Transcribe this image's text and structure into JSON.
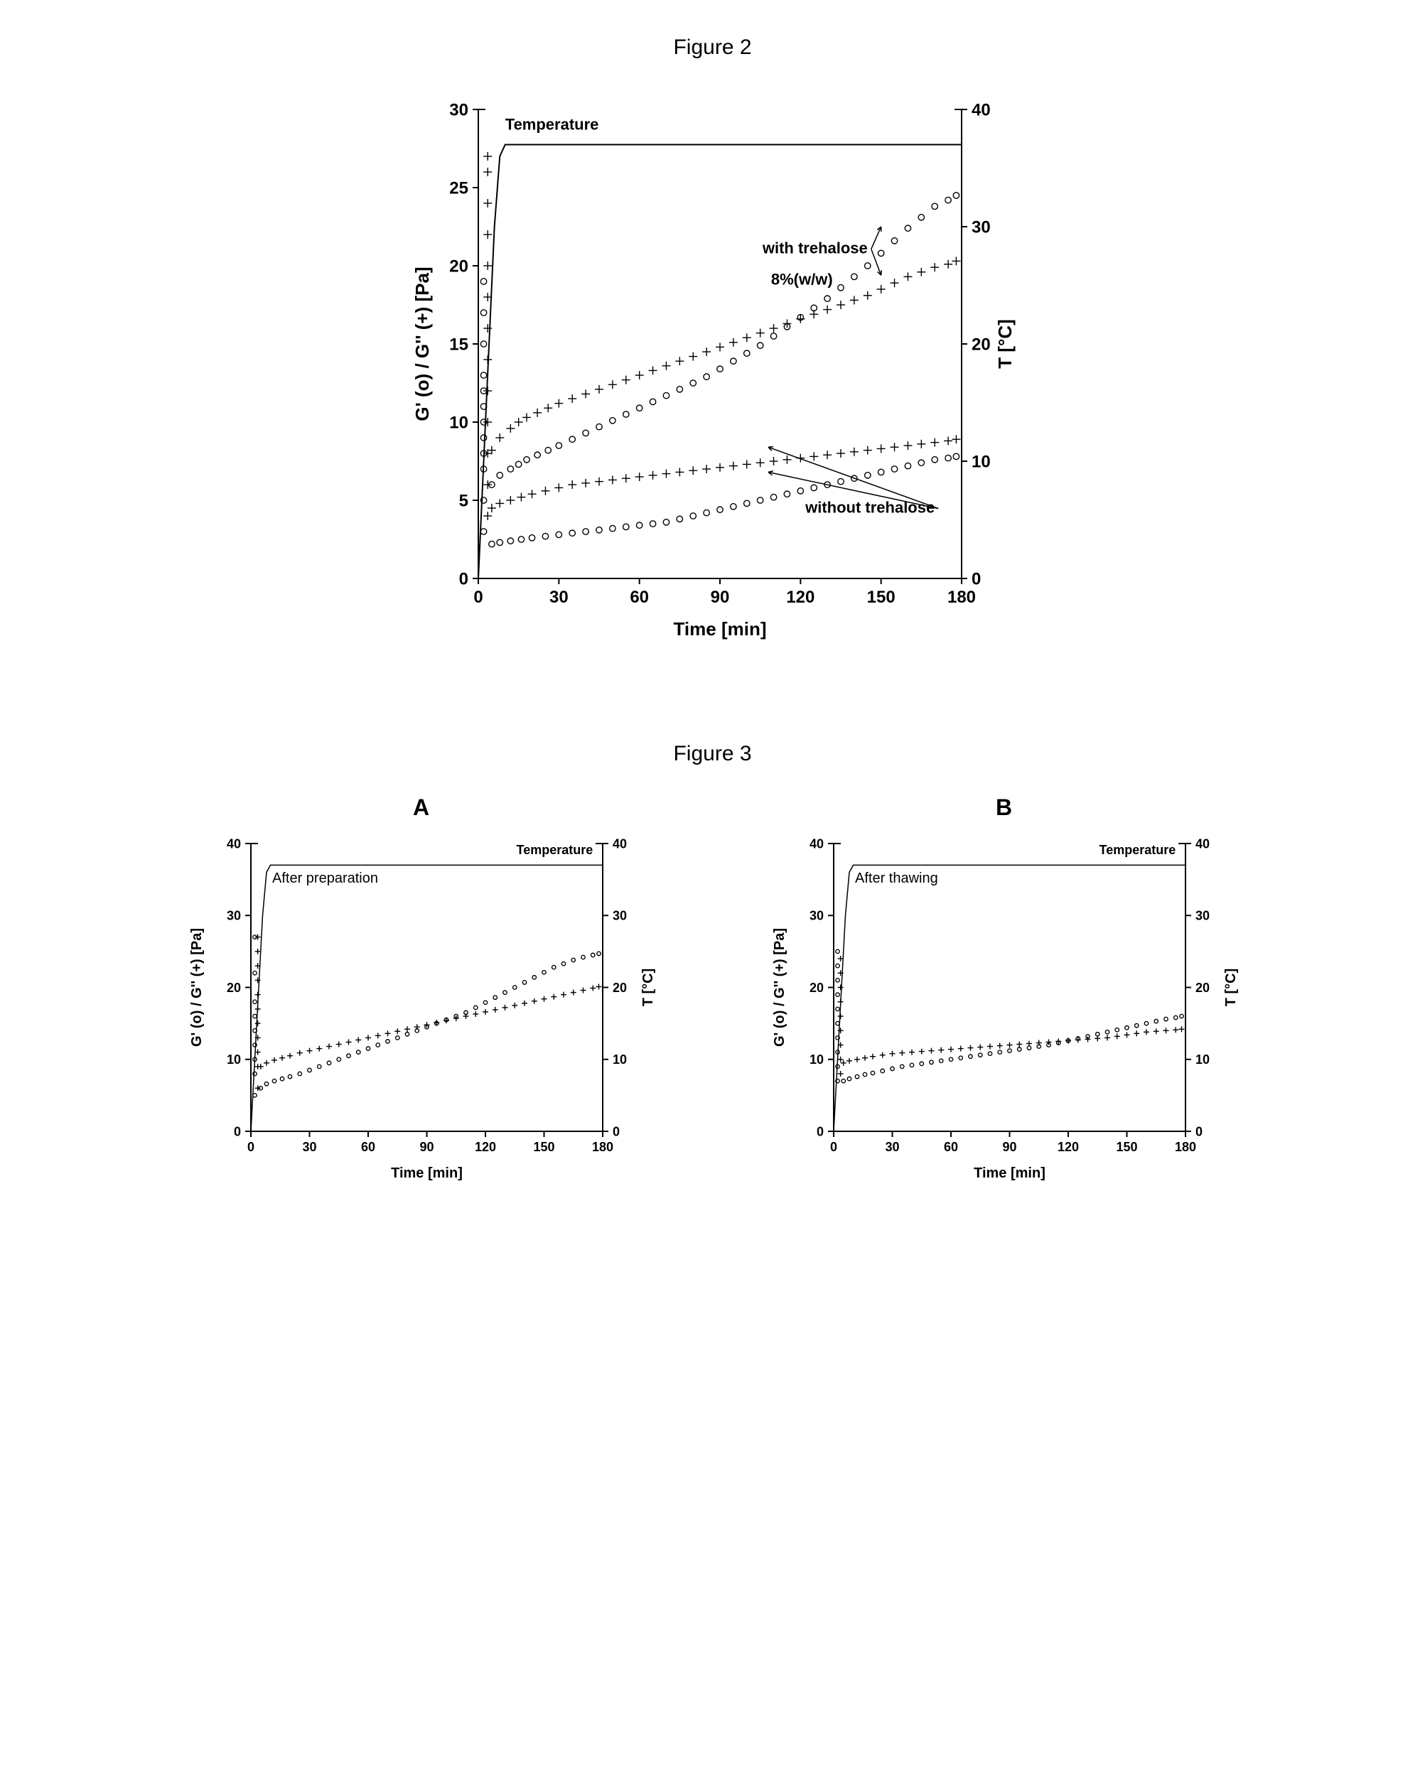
{
  "fig2": {
    "title": "Figure 2",
    "type": "scatter-dual-axis",
    "xlabel": "Time [min]",
    "ylabel_left": "G' (o) / G'' (+)  [Pa]",
    "ylabel_right": "T [°C]",
    "xlim": [
      0,
      180
    ],
    "xtick_step": 30,
    "ylim_left": [
      0,
      30
    ],
    "ytick_left_step": 5,
    "ylim_right": [
      0,
      40
    ],
    "ytick_right_step": 10,
    "label_fontsize": 26,
    "tick_fontsize": 24,
    "annotation_fontsize": 22,
    "background_color": "#ffffff",
    "axis_color": "#000000",
    "marker_stroke": "#000000",
    "marker_size_circle": 4.2,
    "marker_size_plus": 6,
    "line_width_temp": 2,
    "annotations": [
      {
        "text": "Temperature",
        "x": 10,
        "y_left": 28.7,
        "anchor": "start"
      },
      {
        "text": "with trehalose",
        "x": 145,
        "y_left": 20.8,
        "anchor": "end",
        "arrows_to": [
          [
            150,
            19.4
          ],
          [
            150,
            22.5
          ]
        ]
      },
      {
        "text": "8%(w/w)",
        "x": 132,
        "y_left": 18.8,
        "anchor": "end"
      },
      {
        "text": "without trehalose",
        "x": 170,
        "y_left": 4.2,
        "anchor": "end",
        "arrows_to": [
          [
            108,
            6.8
          ],
          [
            108,
            8.4
          ]
        ]
      }
    ],
    "temp_line": {
      "x": [
        0,
        2,
        4,
        6,
        8,
        10,
        180
      ],
      "y_right": [
        0,
        10,
        20,
        30,
        36,
        37,
        37
      ]
    },
    "series": {
      "with_o": {
        "marker": "circle",
        "x": [
          5,
          8,
          12,
          15,
          18,
          22,
          26,
          30,
          35,
          40,
          45,
          50,
          55,
          60,
          65,
          70,
          75,
          80,
          85,
          90,
          95,
          100,
          105,
          110,
          115,
          120,
          125,
          130,
          135,
          140,
          145,
          150,
          155,
          160,
          165,
          170,
          175,
          178
        ],
        "y": [
          6.0,
          6.6,
          7.0,
          7.3,
          7.6,
          7.9,
          8.2,
          8.5,
          8.9,
          9.3,
          9.7,
          10.1,
          10.5,
          10.9,
          11.3,
          11.7,
          12.1,
          12.5,
          12.9,
          13.4,
          13.9,
          14.4,
          14.9,
          15.5,
          16.1,
          16.7,
          17.3,
          17.9,
          18.6,
          19.3,
          20.0,
          20.8,
          21.6,
          22.4,
          23.1,
          23.8,
          24.2,
          24.5
        ]
      },
      "with_p": {
        "marker": "plus",
        "x": [
          5,
          8,
          12,
          15,
          18,
          22,
          26,
          30,
          35,
          40,
          45,
          50,
          55,
          60,
          65,
          70,
          75,
          80,
          85,
          90,
          95,
          100,
          105,
          110,
          115,
          120,
          125,
          130,
          135,
          140,
          145,
          150,
          155,
          160,
          165,
          170,
          175,
          178
        ],
        "y": [
          8.2,
          9.0,
          9.6,
          10.0,
          10.3,
          10.6,
          10.9,
          11.2,
          11.5,
          11.8,
          12.1,
          12.4,
          12.7,
          13.0,
          13.3,
          13.6,
          13.9,
          14.2,
          14.5,
          14.8,
          15.1,
          15.4,
          15.7,
          16.0,
          16.3,
          16.6,
          16.9,
          17.2,
          17.5,
          17.8,
          18.1,
          18.5,
          18.9,
          19.3,
          19.6,
          19.9,
          20.1,
          20.3
        ]
      },
      "wo_o": {
        "marker": "circle",
        "x": [
          5,
          8,
          12,
          16,
          20,
          25,
          30,
          35,
          40,
          45,
          50,
          55,
          60,
          65,
          70,
          75,
          80,
          85,
          90,
          95,
          100,
          105,
          110,
          115,
          120,
          125,
          130,
          135,
          140,
          145,
          150,
          155,
          160,
          165,
          170,
          175,
          178
        ],
        "y": [
          2.2,
          2.3,
          2.4,
          2.5,
          2.6,
          2.7,
          2.8,
          2.9,
          3.0,
          3.1,
          3.2,
          3.3,
          3.4,
          3.5,
          3.6,
          3.8,
          4.0,
          4.2,
          4.4,
          4.6,
          4.8,
          5.0,
          5.2,
          5.4,
          5.6,
          5.8,
          6.0,
          6.2,
          6.4,
          6.6,
          6.8,
          7.0,
          7.2,
          7.4,
          7.6,
          7.7,
          7.8
        ]
      },
      "wo_p": {
        "marker": "plus",
        "x": [
          5,
          8,
          12,
          16,
          20,
          25,
          30,
          35,
          40,
          45,
          50,
          55,
          60,
          65,
          70,
          75,
          80,
          85,
          90,
          95,
          100,
          105,
          110,
          115,
          120,
          125,
          130,
          135,
          140,
          145,
          150,
          155,
          160,
          165,
          170,
          175,
          178
        ],
        "y": [
          4.5,
          4.8,
          5.0,
          5.2,
          5.4,
          5.6,
          5.8,
          6.0,
          6.1,
          6.2,
          6.3,
          6.4,
          6.5,
          6.6,
          6.7,
          6.8,
          6.9,
          7.0,
          7.1,
          7.2,
          7.3,
          7.4,
          7.5,
          7.6,
          7.7,
          7.8,
          7.9,
          8.0,
          8.1,
          8.2,
          8.3,
          8.4,
          8.5,
          8.6,
          8.7,
          8.8,
          8.9
        ]
      }
    },
    "scatter_vertical": {
      "circle": [
        3,
        5,
        7,
        8,
        9,
        10,
        11,
        12,
        13,
        15,
        17,
        19
      ],
      "plus": [
        4,
        6,
        8,
        10,
        12,
        14,
        16,
        18,
        20,
        22,
        24,
        26,
        27
      ]
    }
  },
  "fig3": {
    "title": "Figure 3",
    "type": "scatter-dual-axis-pair",
    "xlabel": "Time  [min]",
    "ylabel_left": "G' (o)  /  G'' (+)  [Pa]",
    "ylabel_right": "T [°C]",
    "xlim": [
      0,
      180
    ],
    "xtick_step": 30,
    "ylim_left": [
      0,
      40
    ],
    "ytick_left_step": 10,
    "ylim_right": [
      0,
      40
    ],
    "ytick_right_step": 10,
    "label_fontsize": 20,
    "tick_fontsize": 18,
    "annotation_fontsize": 18,
    "background_color": "#ffffff",
    "axis_color": "#000000",
    "marker_stroke": "#000000",
    "marker_size_circle": 2.7,
    "marker_size_plus": 4,
    "line_width_temp": 1.5,
    "panels": {
      "A": {
        "label": "A",
        "subtitle": "After preparation",
        "temp_annot": "Temperature",
        "temp_line": {
          "x": [
            0,
            2,
            4,
            6,
            8,
            10,
            180
          ],
          "y_right": [
            0,
            10,
            20,
            30,
            36,
            37,
            37
          ]
        },
        "series": {
          "o": {
            "marker": "circle",
            "x": [
              5,
              8,
              12,
              16,
              20,
              25,
              30,
              35,
              40,
              45,
              50,
              55,
              60,
              65,
              70,
              75,
              80,
              85,
              90,
              95,
              100,
              105,
              110,
              115,
              120,
              125,
              130,
              135,
              140,
              145,
              150,
              155,
              160,
              165,
              170,
              175,
              178
            ],
            "y": [
              6.0,
              6.6,
              7.0,
              7.3,
              7.6,
              8.0,
              8.5,
              9.0,
              9.5,
              10.0,
              10.5,
              11.0,
              11.5,
              12.0,
              12.5,
              13.0,
              13.5,
              14.0,
              14.5,
              15.0,
              15.5,
              16.0,
              16.5,
              17.2,
              17.9,
              18.6,
              19.3,
              20.0,
              20.7,
              21.4,
              22.1,
              22.8,
              23.3,
              23.8,
              24.2,
              24.5,
              24.7
            ]
          },
          "p": {
            "marker": "plus",
            "x": [
              5,
              8,
              12,
              16,
              20,
              25,
              30,
              35,
              40,
              45,
              50,
              55,
              60,
              65,
              70,
              75,
              80,
              85,
              90,
              95,
              100,
              105,
              110,
              115,
              120,
              125,
              130,
              135,
              140,
              145,
              150,
              155,
              160,
              165,
              170,
              175,
              178
            ],
            "y": [
              9.0,
              9.5,
              9.9,
              10.2,
              10.5,
              10.9,
              11.2,
              11.5,
              11.8,
              12.1,
              12.4,
              12.7,
              13.0,
              13.3,
              13.6,
              13.9,
              14.2,
              14.5,
              14.8,
              15.1,
              15.4,
              15.7,
              16.0,
              16.3,
              16.6,
              16.9,
              17.2,
              17.5,
              17.8,
              18.1,
              18.4,
              18.7,
              19.0,
              19.3,
              19.6,
              19.9,
              20.1
            ]
          }
        },
        "scatter_vertical": {
          "circle": [
            5,
            8,
            10,
            12,
            14,
            16,
            18,
            22,
            27
          ],
          "plus": [
            6,
            9,
            11,
            13,
            15,
            17,
            19,
            21,
            23,
            25,
            27
          ]
        }
      },
      "B": {
        "label": "B",
        "subtitle": "After thawing",
        "temp_annot": "Temperature",
        "temp_line": {
          "x": [
            0,
            2,
            4,
            6,
            8,
            10,
            180
          ],
          "y_right": [
            0,
            10,
            20,
            30,
            36,
            37,
            37
          ]
        },
        "series": {
          "o": {
            "marker": "circle",
            "x": [
              5,
              8,
              12,
              16,
              20,
              25,
              30,
              35,
              40,
              45,
              50,
              55,
              60,
              65,
              70,
              75,
              80,
              85,
              90,
              95,
              100,
              105,
              110,
              115,
              120,
              125,
              130,
              135,
              140,
              145,
              150,
              155,
              160,
              165,
              170,
              175,
              178
            ],
            "y": [
              7.0,
              7.3,
              7.6,
              7.9,
              8.1,
              8.4,
              8.7,
              9.0,
              9.2,
              9.4,
              9.6,
              9.8,
              10.0,
              10.2,
              10.4,
              10.6,
              10.8,
              11.0,
              11.2,
              11.4,
              11.6,
              11.8,
              12.0,
              12.3,
              12.6,
              12.9,
              13.2,
              13.5,
              13.8,
              14.1,
              14.4,
              14.7,
              15.0,
              15.3,
              15.6,
              15.8,
              16.0
            ]
          },
          "p": {
            "marker": "plus",
            "x": [
              5,
              8,
              12,
              16,
              20,
              25,
              30,
              35,
              40,
              45,
              50,
              55,
              60,
              65,
              70,
              75,
              80,
              85,
              90,
              95,
              100,
              105,
              110,
              115,
              120,
              125,
              130,
              135,
              140,
              145,
              150,
              155,
              160,
              165,
              170,
              175,
              178
            ],
            "y": [
              9.5,
              9.8,
              10.0,
              10.2,
              10.4,
              10.6,
              10.8,
              10.9,
              11.0,
              11.1,
              11.2,
              11.3,
              11.4,
              11.5,
              11.6,
              11.7,
              11.8,
              11.9,
              12.0,
              12.1,
              12.2,
              12.3,
              12.4,
              12.5,
              12.6,
              12.7,
              12.8,
              12.9,
              13.0,
              13.2,
              13.4,
              13.6,
              13.8,
              13.9,
              14.0,
              14.1,
              14.2
            ]
          }
        },
        "scatter_vertical": {
          "circle": [
            7,
            9,
            11,
            13,
            15,
            17,
            19,
            21,
            23,
            25
          ],
          "plus": [
            8,
            10,
            12,
            14,
            16,
            18,
            20,
            22,
            24
          ]
        }
      }
    }
  }
}
